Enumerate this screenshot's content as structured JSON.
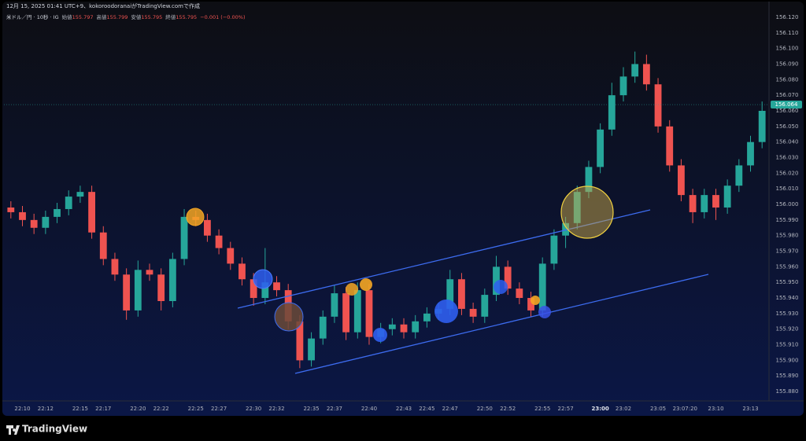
{
  "header": {
    "caption": "12月 15, 2025 01:41 UTC+9、kokoroodoranaiがTradingView.comで作成"
  },
  "footer": {
    "brand": "TradingView"
  },
  "chart_data": {
    "type": "candlestick",
    "symbol": "米ドル／円 · 10秒 · IG",
    "legend": [
      {
        "label": "始値",
        "value": 155.797
      },
      {
        "label": "高値",
        "value": 155.799
      },
      {
        "label": "安値",
        "value": 155.795
      },
      {
        "label": "終値",
        "value": 155.795
      }
    ],
    "change_label": "−0.001 (−0.00%)",
    "up_color": "#26a69a",
    "down_color": "#ef5350",
    "grid": false,
    "x": [
      9,
      10,
      11,
      12,
      13,
      14,
      15,
      16,
      17,
      18,
      19,
      20,
      21,
      22,
      23,
      24,
      25,
      26,
      27,
      28,
      29,
      30,
      31,
      32,
      33,
      34,
      35,
      36,
      37,
      38,
      39,
      40,
      41,
      42,
      43,
      44,
      45,
      46,
      47,
      48,
      49,
      50,
      51,
      52,
      53,
      54,
      55,
      56,
      57,
      58,
      59,
      60,
      61,
      62,
      63,
      64,
      65,
      66,
      67,
      68,
      69,
      70,
      71,
      72,
      73,
      74
    ],
    "open": [
      155.998,
      155.995,
      155.99,
      155.985,
      155.992,
      155.997,
      156.005,
      156.008,
      155.982,
      155.965,
      155.955,
      155.932,
      155.958,
      155.955,
      155.938,
      155.965,
      155.992,
      155.99,
      155.98,
      155.972,
      155.962,
      155.952,
      155.94,
      155.95,
      155.945,
      155.925,
      155.9,
      155.914,
      155.928,
      155.943,
      155.918,
      155.945,
      155.915,
      155.92,
      155.923,
      155.918,
      155.925,
      155.93,
      155.933,
      155.952,
      155.933,
      155.928,
      155.942,
      155.96,
      155.946,
      155.94,
      155.932,
      155.962,
      155.98,
      155.988,
      156.008,
      156.024,
      156.048,
      156.07,
      156.082,
      156.09,
      156.077,
      156.05,
      156.025,
      156.006,
      155.995,
      156.006,
      155.998,
      156.012,
      156.025,
      156.04
    ],
    "high": [
      156.002,
      155.999,
      155.994,
      155.996,
      156.001,
      156.009,
      156.012,
      156.012,
      155.986,
      155.969,
      155.959,
      155.964,
      155.962,
      155.959,
      155.969,
      155.997,
      155.996,
      155.994,
      155.984,
      155.976,
      155.966,
      155.956,
      155.972,
      155.954,
      155.949,
      155.929,
      155.918,
      155.932,
      155.948,
      155.947,
      155.95,
      155.949,
      155.924,
      155.927,
      155.927,
      155.929,
      155.934,
      155.937,
      155.958,
      155.956,
      155.937,
      155.946,
      155.967,
      155.964,
      155.95,
      155.944,
      155.966,
      155.984,
      155.992,
      156.012,
      156.028,
      156.052,
      156.078,
      156.088,
      156.098,
      156.096,
      156.081,
      156.054,
      156.029,
      156.01,
      156.01,
      156.01,
      156.016,
      156.029,
      156.044,
      156.066
    ],
    "low": [
      155.991,
      155.986,
      155.981,
      155.981,
      155.988,
      155.993,
      156.001,
      155.978,
      155.961,
      155.951,
      155.926,
      155.928,
      155.951,
      155.932,
      155.934,
      155.961,
      155.986,
      155.976,
      155.968,
      155.958,
      155.948,
      155.935,
      155.936,
      155.941,
      155.92,
      155.895,
      155.896,
      155.91,
      155.924,
      155.913,
      155.914,
      155.91,
      155.911,
      155.916,
      155.914,
      155.914,
      155.921,
      155.926,
      155.929,
      155.929,
      155.924,
      155.924,
      155.938,
      155.942,
      155.936,
      155.928,
      155.928,
      155.958,
      155.972,
      155.984,
      156.004,
      156.02,
      156.044,
      156.066,
      156.078,
      156.073,
      156.046,
      156.021,
      156.002,
      155.988,
      155.991,
      155.99,
      155.994,
      156.008,
      156.021,
      156.036
    ],
    "close": [
      155.995,
      155.99,
      155.985,
      155.992,
      155.997,
      156.005,
      156.008,
      155.982,
      155.965,
      155.955,
      155.932,
      155.958,
      155.955,
      155.938,
      155.965,
      155.992,
      155.99,
      155.98,
      155.972,
      155.962,
      155.952,
      155.94,
      155.95,
      155.945,
      155.925,
      155.9,
      155.914,
      155.928,
      155.943,
      155.918,
      155.945,
      155.915,
      155.92,
      155.923,
      155.918,
      155.925,
      155.93,
      155.933,
      155.952,
      155.933,
      155.928,
      155.942,
      155.96,
      155.946,
      155.94,
      155.932,
      155.962,
      155.98,
      155.988,
      156.008,
      156.024,
      156.048,
      156.07,
      156.082,
      156.09,
      156.077,
      156.05,
      156.025,
      156.006,
      155.995,
      156.006,
      155.998,
      156.012,
      156.025,
      156.04,
      156.06
    ],
    "xlim": [
      8.4,
      74.6
    ],
    "xticks": [
      {
        "value": 10,
        "label": "22:10"
      },
      {
        "value": 12,
        "label": "22:12"
      },
      {
        "value": 15,
        "label": "22:15"
      },
      {
        "value": 17,
        "label": "22:17"
      },
      {
        "value": 20,
        "label": "22:20"
      },
      {
        "value": 22,
        "label": "22:22"
      },
      {
        "value": 25,
        "label": "22:25"
      },
      {
        "value": 27,
        "label": "22:27"
      },
      {
        "value": 30,
        "label": "22:30"
      },
      {
        "value": 32,
        "label": "22:32"
      },
      {
        "value": 35,
        "label": "22:35"
      },
      {
        "value": 37,
        "label": "22:37"
      },
      {
        "value": 40,
        "label": "22:40"
      },
      {
        "value": 43,
        "label": "22:43"
      },
      {
        "value": 45,
        "label": "22:45"
      },
      {
        "value": 47,
        "label": "22:47"
      },
      {
        "value": 50,
        "label": "22:50"
      },
      {
        "value": 52,
        "label": "22:52"
      },
      {
        "value": 55,
        "label": "22:55"
      },
      {
        "value": 57,
        "label": "22:57"
      },
      {
        "value": 60,
        "label": "23:00",
        "bold": true
      },
      {
        "value": 62,
        "label": "23:02"
      },
      {
        "value": 65,
        "label": "23:05"
      },
      {
        "value": 67.333,
        "label": "23:07:20"
      },
      {
        "value": 70,
        "label": "23:10"
      },
      {
        "value": 73,
        "label": "23:13"
      }
    ],
    "ylim": [
      155.8765,
      156.122
    ],
    "yticks": [
      {
        "value": 156.12,
        "label": "156.120"
      },
      {
        "value": 156.11,
        "label": "156.110"
      },
      {
        "value": 156.1,
        "label": "156.100"
      },
      {
        "value": 156.09,
        "label": "156.090"
      },
      {
        "value": 156.08,
        "label": "156.080"
      },
      {
        "value": 156.07,
        "label": "156.070"
      },
      {
        "value": 156.06,
        "label": "156.060"
      },
      {
        "value": 156.05,
        "label": "156.050"
      },
      {
        "value": 156.04,
        "label": "156.040"
      },
      {
        "value": 156.03,
        "label": "156.030"
      },
      {
        "value": 156.02,
        "label": "156.020"
      },
      {
        "value": 156.01,
        "label": "156.010"
      },
      {
        "value": 156.0,
        "label": "156.000"
      },
      {
        "value": 155.99,
        "label": "155.990"
      },
      {
        "value": 155.98,
        "label": "155.980"
      },
      {
        "value": 155.97,
        "label": "155.970"
      },
      {
        "value": 155.96,
        "label": "155.960"
      },
      {
        "value": 155.95,
        "label": "155.950"
      },
      {
        "value": 155.94,
        "label": "155.940"
      },
      {
        "value": 155.93,
        "label": "155.930"
      },
      {
        "value": 155.92,
        "label": "155.920"
      },
      {
        "value": 155.91,
        "label": "155.910"
      },
      {
        "value": 155.9,
        "label": "155.900"
      },
      {
        "value": 155.89,
        "label": "155.890"
      },
      {
        "value": 155.88,
        "label": "155.880"
      }
    ],
    "last_price": {
      "value": 156.064,
      "label": "156.064"
    }
  }
}
